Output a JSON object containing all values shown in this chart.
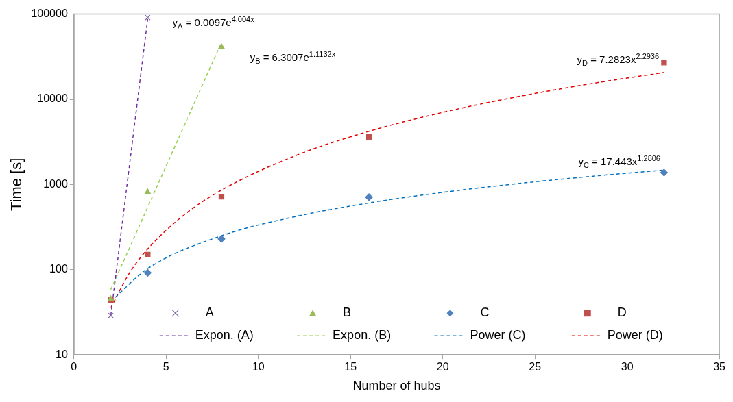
{
  "chart_data": {
    "type": "scatter",
    "xlabel": "Number of hubs",
    "ylabel": "Time [s]",
    "log": true,
    "grid": false,
    "legend": "bottom",
    "xlim": [
      0,
      35
    ],
    "xticks": [
      0,
      5,
      10,
      15,
      20,
      25,
      30,
      35
    ],
    "ylim": [
      10,
      100000
    ],
    "yticks": [
      10,
      100,
      1000,
      10000,
      100000
    ],
    "series": [
      {
        "name": "A",
        "color": "#8064a2",
        "marker": "cross",
        "x": [
          2,
          4
        ],
        "values": [
          29,
          91000
        ]
      },
      {
        "name": "B",
        "color": "#9bbb59",
        "marker": "triangle",
        "x": [
          2,
          4,
          8
        ],
        "values": [
          45,
          810,
          41000
        ]
      },
      {
        "name": "C",
        "color": "#4f81bd",
        "marker": "diamond",
        "x": [
          4,
          8,
          16,
          32
        ],
        "values": [
          92,
          230,
          710,
          1380
        ]
      },
      {
        "name": "D",
        "color": "#c0504d",
        "marker": "square",
        "x": [
          2,
          4,
          8,
          16,
          32
        ],
        "values": [
          44,
          150,
          720,
          3600,
          27000
        ]
      },
      {
        "name": "Expon. (A)",
        "type": "line",
        "color": "#7030a0",
        "marker": "none",
        "line_style": "dashed",
        "x": [
          2,
          2.5,
          3,
          3.5,
          4
        ],
        "values": [
          29.1,
          216,
          1599,
          11840,
          87600
        ]
      },
      {
        "name": "Expon. (B)",
        "type": "line",
        "color": "#92d050",
        "marker": "none",
        "line_style": "dashed",
        "x": [
          2,
          5,
          8
        ],
        "values": [
          58.4,
          1647,
          46440
        ]
      },
      {
        "name": "Power (C)",
        "type": "line",
        "color": "#0070c0",
        "marker": "none",
        "line_style": "dashed",
        "x": [
          2,
          4,
          8,
          12,
          16,
          20,
          24,
          28,
          32
        ],
        "values": [
          42.4,
          103,
          250,
          420,
          608,
          809,
          1021,
          1244,
          1478
        ]
      },
      {
        "name": "Power (D)",
        "type": "line",
        "color": "#e00000",
        "marker": "none",
        "line_style": "dashed",
        "x": [
          2,
          3,
          4,
          6,
          8,
          12,
          16,
          20,
          24,
          28,
          32
        ],
        "values": [
          35.7,
          90.5,
          175,
          444,
          859,
          2175,
          4212,
          7023,
          10670,
          15200,
          20650
        ]
      }
    ],
    "annotations": [
      "y$_{A}$ = 0.0097e$^{4.004x}$",
      "y$_{B}$ = 6.3007e$^{1.1132x}$",
      "y$_{D}$ = 7.2823x$^{2.2936}$",
      "y$_{C}$ = 17.443x$^{1.2806}$"
    ]
  }
}
